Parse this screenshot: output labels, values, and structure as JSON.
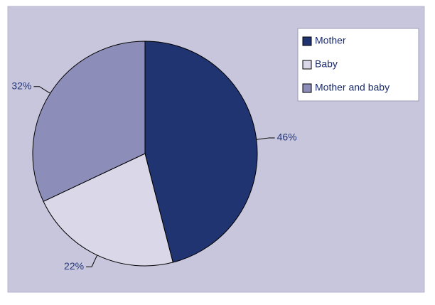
{
  "chart_data": {
    "type": "pie",
    "categories": [
      "Mother",
      "Baby",
      "Mother and baby"
    ],
    "values": [
      46,
      22,
      32
    ],
    "value_labels": [
      "46%",
      "22%",
      "32%"
    ],
    "colors": [
      "#1f3470",
      "#d9d7e8",
      "#8d8db9"
    ],
    "legend": "upper right"
  }
}
